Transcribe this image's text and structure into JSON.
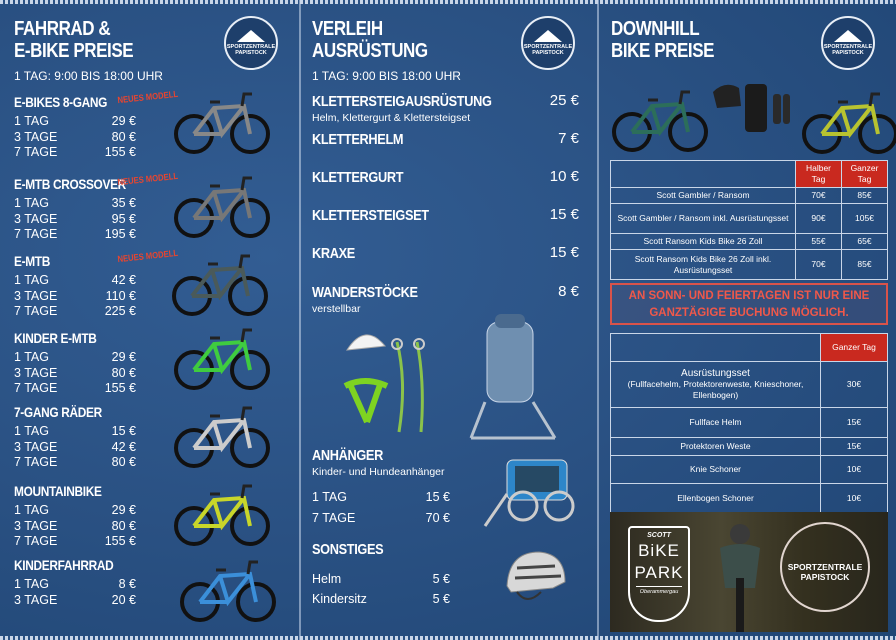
{
  "brand": {
    "logo_text": "SPORTZENTRALE PAPISTOCK",
    "accent": "#c9291f",
    "background": "#2a5183"
  },
  "left": {
    "title_line1": "FAHRRAD &",
    "title_line2": "E-BIKE PREISE",
    "hours": "1 TAG: 9:00 BIS 18:00 UHR",
    "sections": [
      {
        "name": "E-BIKES 8-GANG",
        "badge": "NEUES MODELL",
        "rows": [
          {
            "d": "1 TAG",
            "p": "29 €"
          },
          {
            "d": "3 TAGE",
            "p": "80 €"
          },
          {
            "d": "7 TAGE",
            "p": "155 €"
          }
        ]
      },
      {
        "name": "E-MTB CROSSOVER",
        "badge": "NEUES MODELL",
        "rows": [
          {
            "d": "1 TAG",
            "p": "35 €"
          },
          {
            "d": "3 TAGE",
            "p": "95 €"
          },
          {
            "d": "7 TAGE",
            "p": "195 €"
          }
        ]
      },
      {
        "name": "E-MTB",
        "badge": "NEUES MODELL",
        "rows": [
          {
            "d": "1 TAG",
            "p": "42 €"
          },
          {
            "d": "3 TAGE",
            "p": "110 €"
          },
          {
            "d": "7 TAGE",
            "p": "225 €"
          }
        ]
      },
      {
        "name": "KINDER E-MTB",
        "rows": [
          {
            "d": "1 TAG",
            "p": "29 €"
          },
          {
            "d": "3 TAGE",
            "p": "80 €"
          },
          {
            "d": "7 TAGE",
            "p": "155 €"
          }
        ]
      },
      {
        "name": "7-GANG RÄDER",
        "rows": [
          {
            "d": "1 TAG",
            "p": "15 €"
          },
          {
            "d": "3 TAGE",
            "p": "42 €"
          },
          {
            "d": "7 TAGE",
            "p": "80 €"
          }
        ]
      },
      {
        "name": "MOUNTAINBIKE",
        "rows": [
          {
            "d": "1 TAG",
            "p": "29 €"
          },
          {
            "d": "3 TAGE",
            "p": "80 €"
          },
          {
            "d": "7 TAGE",
            "p": "155 €"
          }
        ]
      },
      {
        "name": "KINDERFAHRRAD",
        "rows": [
          {
            "d": "1 TAG",
            "p": "8 €"
          },
          {
            "d": "3 TAGE",
            "p": "20 €"
          }
        ]
      }
    ]
  },
  "middle": {
    "title_line1": "VERLEIH",
    "title_line2": "AUSRÜSTUNG",
    "hours": "1 TAG: 9:00 BIS 18:00 UHR",
    "items": [
      {
        "name": "KLETTERSTEIGAUSRÜSTUNG",
        "price": "25 €",
        "note": "Helm, Klettergurt & Klettersteigset"
      },
      {
        "name": "KLETTERHELM",
        "price": "7 €"
      },
      {
        "name": "KLETTERGURT",
        "price": "10 €"
      },
      {
        "name": "KLETTERSTEIGSET",
        "price": "15 €"
      },
      {
        "name": "KRAXE",
        "price": "15 €"
      },
      {
        "name": "WANDERSTÖCKE",
        "price": "8 €",
        "note": "verstellbar"
      }
    ],
    "trailer": {
      "name": "ANHÄNGER",
      "note": "Kinder- und Hundeanhänger",
      "rows": [
        {
          "d": "1 TAG",
          "p": "15 €"
        },
        {
          "d": "7 TAGE",
          "p": "70 €"
        }
      ]
    },
    "misc": {
      "name": "SONSTIGES",
      "rows": [
        {
          "d": "Helm",
          "p": "5 €"
        },
        {
          "d": "Kindersitz",
          "p": "5 €"
        }
      ]
    }
  },
  "right": {
    "title_line1": "DOWNHILL",
    "title_line2": "BIKE PREISE",
    "table1": {
      "headers": [
        "Halber Tag",
        "Ganzer Tag"
      ],
      "rows": [
        {
          "name": "Scott Gambler / Ransom",
          "half": "70€",
          "full": "85€"
        },
        {
          "name": "Scott Gambler / Ransom inkl. Ausrüstungsset",
          "half": "90€",
          "full": "105€"
        },
        {
          "name": "Scott Ransom Kids Bike 26 Zoll",
          "half": "55€",
          "full": "65€"
        },
        {
          "name": "Scott Ransom Kids Bike 26 Zoll inkl. Ausrüstungsset",
          "half": "70€",
          "full": "85€"
        }
      ]
    },
    "warning": "AN SONN- UND FEIERTAGEN IST NUR EINE GANZTÄGIGE BUCHUNG MÖGLICH.",
    "table2": {
      "header": "Ganzer Tag",
      "rows": [
        {
          "name": "Ausrüstungsset",
          "detail": "(Fullfacehelm, Protektorenweste, Knieschoner, Ellenbogen)",
          "full": "30€"
        },
        {
          "name": "Fullface Helm",
          "full": "15€"
        },
        {
          "name": "Protektoren Weste",
          "full": "15€"
        },
        {
          "name": "Knie Schoner",
          "full": "10€"
        },
        {
          "name": "Ellenbogen Schoner",
          "full": "10€"
        }
      ]
    },
    "bikepark": {
      "scott": "SCOTT",
      "line1": "BiKE",
      "line2": "PARK",
      "place": "Oberammergau",
      "partner": "SPORTZENTRALE PAPISTOCK"
    }
  }
}
